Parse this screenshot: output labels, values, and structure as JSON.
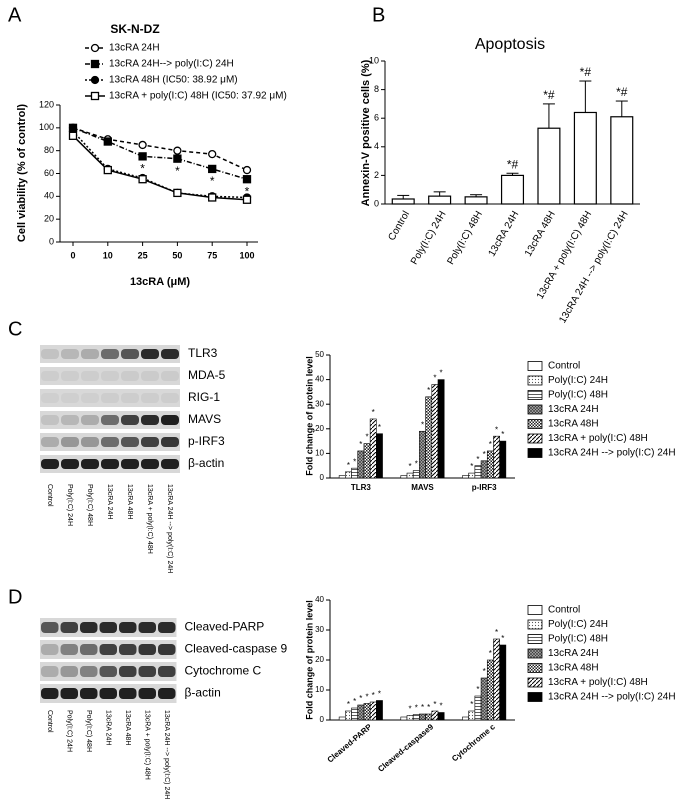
{
  "panel_labels": [
    "A",
    "B",
    "C",
    "D"
  ],
  "blots": [
    {
      "proteins": [
        "TLR3",
        "MDA-5",
        "RIG-1",
        "MAVS",
        "p-IRF3",
        "β-actin"
      ],
      "lanes": [
        "Control",
        "Poly(I:C) 24H",
        "Poly(I:C) 48H",
        "13cRA 24H",
        "13cRA 48H",
        "13cRA + poly(I:C) 48H",
        "13cRA 24H --> poly(I:C) 24H"
      ]
    },
    {
      "proteins": [
        "Cleaved-PARP",
        "Cleaved-caspase 9",
        "Cytochrome C",
        "β-actin"
      ],
      "lanes": [
        "Control",
        "Poly(I:C) 24H",
        "Poly(I:C) 48H",
        "13cRA 24H",
        "13cRA 48H",
        "13cRA + poly(I:C) 48H",
        "13cRA 24H --> poly(I:C) 24H"
      ]
    }
  ],
  "chart_data": [
    {
      "type": "line",
      "title": "SK-N-DZ",
      "x_label": "13cRA (μM)",
      "y_label": "Cell viability (% of control)",
      "categories": [
        "0",
        "10",
        "25",
        "50",
        "75",
        "100"
      ],
      "ylim": [
        0,
        120
      ],
      "yticks": [
        0,
        20,
        40,
        60,
        80,
        100,
        120
      ],
      "series": [
        {
          "name": "13cRA 24H",
          "color": "#000000",
          "values": [
            100,
            90,
            85,
            80,
            77,
            63
          ],
          "annotations": null
        },
        {
          "name": "13cRA 24H--> poly(I:C) 24H",
          "color": "#000000",
          "values": [
            100,
            88,
            75,
            73,
            64,
            55
          ],
          "annotations": [
            null,
            null,
            "*",
            "*",
            "*",
            "*"
          ]
        },
        {
          "name": "13cRA 48H (IC50: 38.92 μM)",
          "color": "#000000",
          "values": [
            97,
            64,
            56,
            43,
            40,
            39
          ],
          "annotations": null
        },
        {
          "name": "13cRA + poly(I:C) 48H (IC50: 37.92 μM)",
          "color": "#000000",
          "values": [
            93,
            63,
            55,
            43,
            39,
            37
          ],
          "annotations": null
        }
      ]
    },
    {
      "type": "bar",
      "title": "Apoptosis",
      "y_label": "Annexin-V positive cells (%)",
      "color": "#ffffff",
      "categories": [
        "Control",
        "Poly(I:C) 24H",
        "Poly(I:C) 48H",
        "13cRA 24H",
        "13cRA 48H",
        "13cRA + poly(I:C) 48H",
        "13cRA 24H --> poly(I:C) 24H"
      ],
      "values": [
        0.35,
        0.55,
        0.5,
        2.0,
        5.3,
        6.4,
        6.1
      ],
      "errors": [
        0.25,
        0.3,
        0.15,
        0.15,
        1.7,
        2.2,
        1.1
      ],
      "annotations": [
        null,
        null,
        null,
        "*#",
        "*#",
        "*#",
        "*#"
      ],
      "ylim": [
        0,
        10
      ],
      "yticks": [
        0,
        2,
        4,
        6,
        8,
        10
      ]
    },
    {
      "type": "grouped_bar",
      "y_label": "Fold change of protein level",
      "annotation": "*",
      "categories": [
        "TLR3",
        "MAVS",
        "p-IRF3"
      ],
      "ylim": [
        0,
        50
      ],
      "yticks": [
        0,
        10,
        20,
        30,
        40,
        50
      ],
      "series": [
        {
          "name": "Control",
          "values": [
            1,
            1,
            1
          ]
        },
        {
          "name": "Poly(I:C) 24H",
          "values": [
            2.5,
            2,
            2
          ]
        },
        {
          "name": "Poly(I:C) 48H",
          "values": [
            4,
            3,
            5
          ]
        },
        {
          "name": "13cRA 24H",
          "values": [
            11,
            19,
            7
          ]
        },
        {
          "name": "13cRA 48H",
          "values": [
            14,
            33,
            11
          ]
        },
        {
          "name": "13cRA + poly(I:C) 48H",
          "values": [
            24,
            38,
            17
          ]
        },
        {
          "name": "13cRA 24H --> poly(I:C) 24H",
          "values": [
            18,
            40,
            15
          ]
        }
      ]
    },
    {
      "type": "grouped_bar",
      "y_label": "Fold change of protein level",
      "annotation": "*",
      "categories": [
        "Cleaved-PARP",
        "Cleaved-caspase9",
        "Cytochrome c"
      ],
      "ylim": [
        0,
        40
      ],
      "yticks": [
        0,
        10,
        20,
        30,
        40
      ],
      "series": [
        {
          "name": "Control",
          "values": [
            1,
            1,
            1
          ]
        },
        {
          "name": "Poly(I:C) 24H",
          "values": [
            3,
            1.5,
            3
          ]
        },
        {
          "name": "Poly(I:C) 48H",
          "values": [
            4,
            1.8,
            8
          ]
        },
        {
          "name": "13cRA 24H",
          "values": [
            5,
            2,
            14
          ]
        },
        {
          "name": "13cRA 48H",
          "values": [
            5.5,
            2,
            20
          ]
        },
        {
          "name": "13cRA + poly(I:C) 48H",
          "values": [
            6,
            3,
            27
          ]
        },
        {
          "name": "13cRA 24H --> poly(I:C) 24H",
          "values": [
            6.5,
            2.5,
            25
          ]
        }
      ]
    }
  ]
}
